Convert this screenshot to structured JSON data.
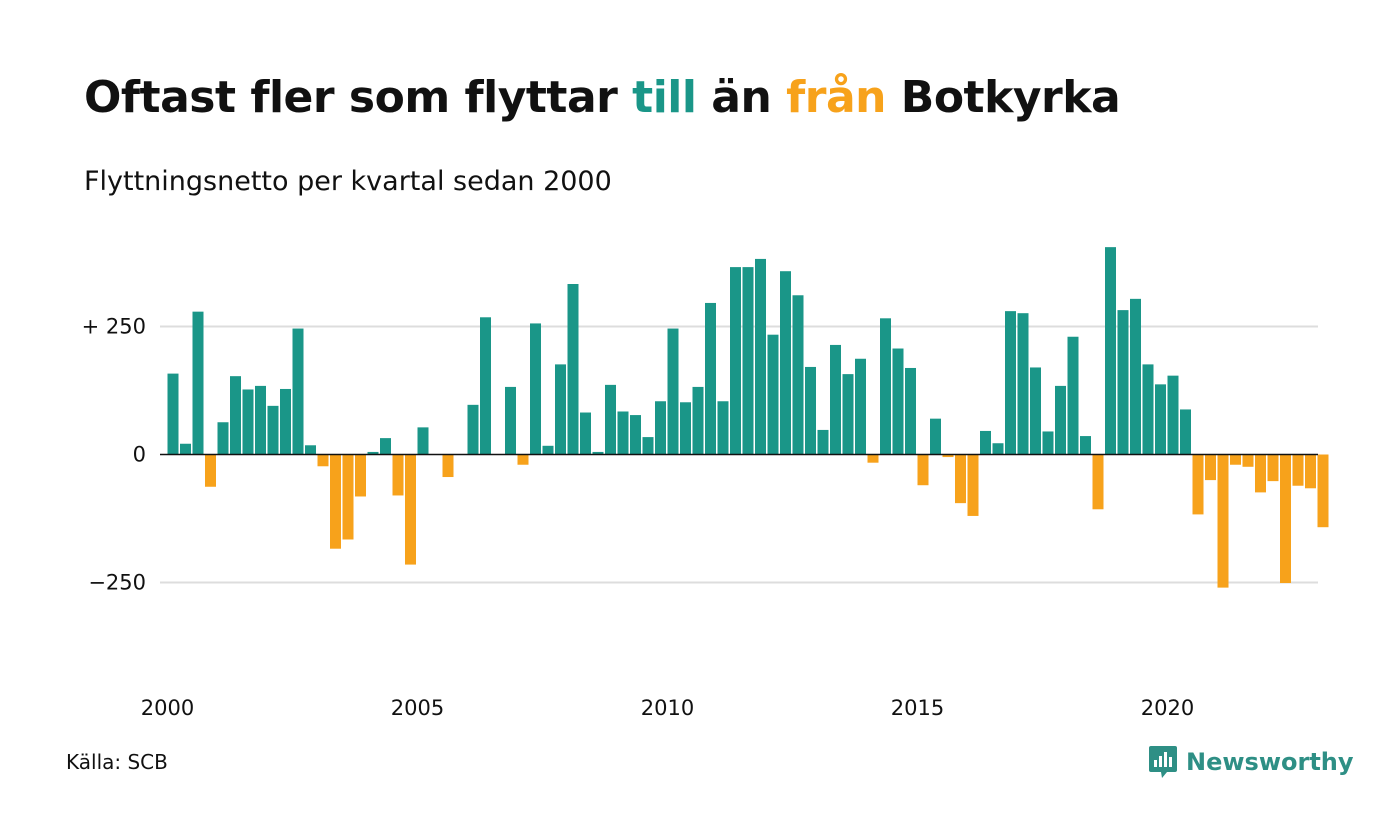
{
  "title": {
    "part1": "Oftast fler som flyttar ",
    "till": "till",
    "part2": " än ",
    "fran": "från",
    "part3": " Botkyrka"
  },
  "subtitle": "Flyttningsnetto per kvartal sedan 2000",
  "source": "Källa: SCB",
  "brand": {
    "name": "Newsworthy",
    "icon": "newsworthy-logo-icon"
  },
  "colors": {
    "positive": "#1a9688",
    "negative": "#f7a21b",
    "grid": "#dddddd",
    "baseline": "#111111",
    "brand": "#2e8f85"
  },
  "chart_data": {
    "type": "bar",
    "title": "Oftast fler som flyttar till än från Botkyrka",
    "subtitle": "Flyttningsnetto per kvartal sedan 2000",
    "xlabel": "",
    "ylabel": "",
    "ylim": [
      -450,
      420
    ],
    "x_start_year": 2000,
    "periods_per_year": 4,
    "x_ticks": [
      "2000",
      "2005",
      "2010",
      "2015",
      "2020"
    ],
    "y_ticks": [
      {
        "value": 250,
        "label": "+ 250"
      },
      {
        "value": 0,
        "label": "0"
      },
      {
        "value": -250,
        "label": "−250"
      }
    ],
    "grid": true,
    "legend": "none",
    "values": [
      158,
      21,
      279,
      -63,
      63,
      153,
      127,
      134,
      95,
      128,
      246,
      18,
      -23,
      -184,
      -166,
      -82,
      5,
      32,
      -80,
      -215,
      53,
      0,
      -44,
      0,
      97,
      268,
      0,
      132,
      -20,
      256,
      17,
      176,
      333,
      82,
      5,
      136,
      84,
      77,
      34,
      104,
      246,
      102,
      132,
      296,
      104,
      366,
      366,
      382,
      234,
      358,
      311,
      171,
      48,
      214,
      157,
      187,
      -16,
      266,
      207,
      169,
      -60,
      70,
      -5,
      -95,
      -120,
      46,
      22,
      280,
      276,
      170,
      45,
      134,
      230,
      36,
      -107,
      405,
      282,
      304,
      176,
      137,
      154,
      88,
      -117,
      -50,
      -260,
      -20,
      -24,
      -74,
      -52,
      -251,
      -61,
      -66,
      -142
    ]
  }
}
